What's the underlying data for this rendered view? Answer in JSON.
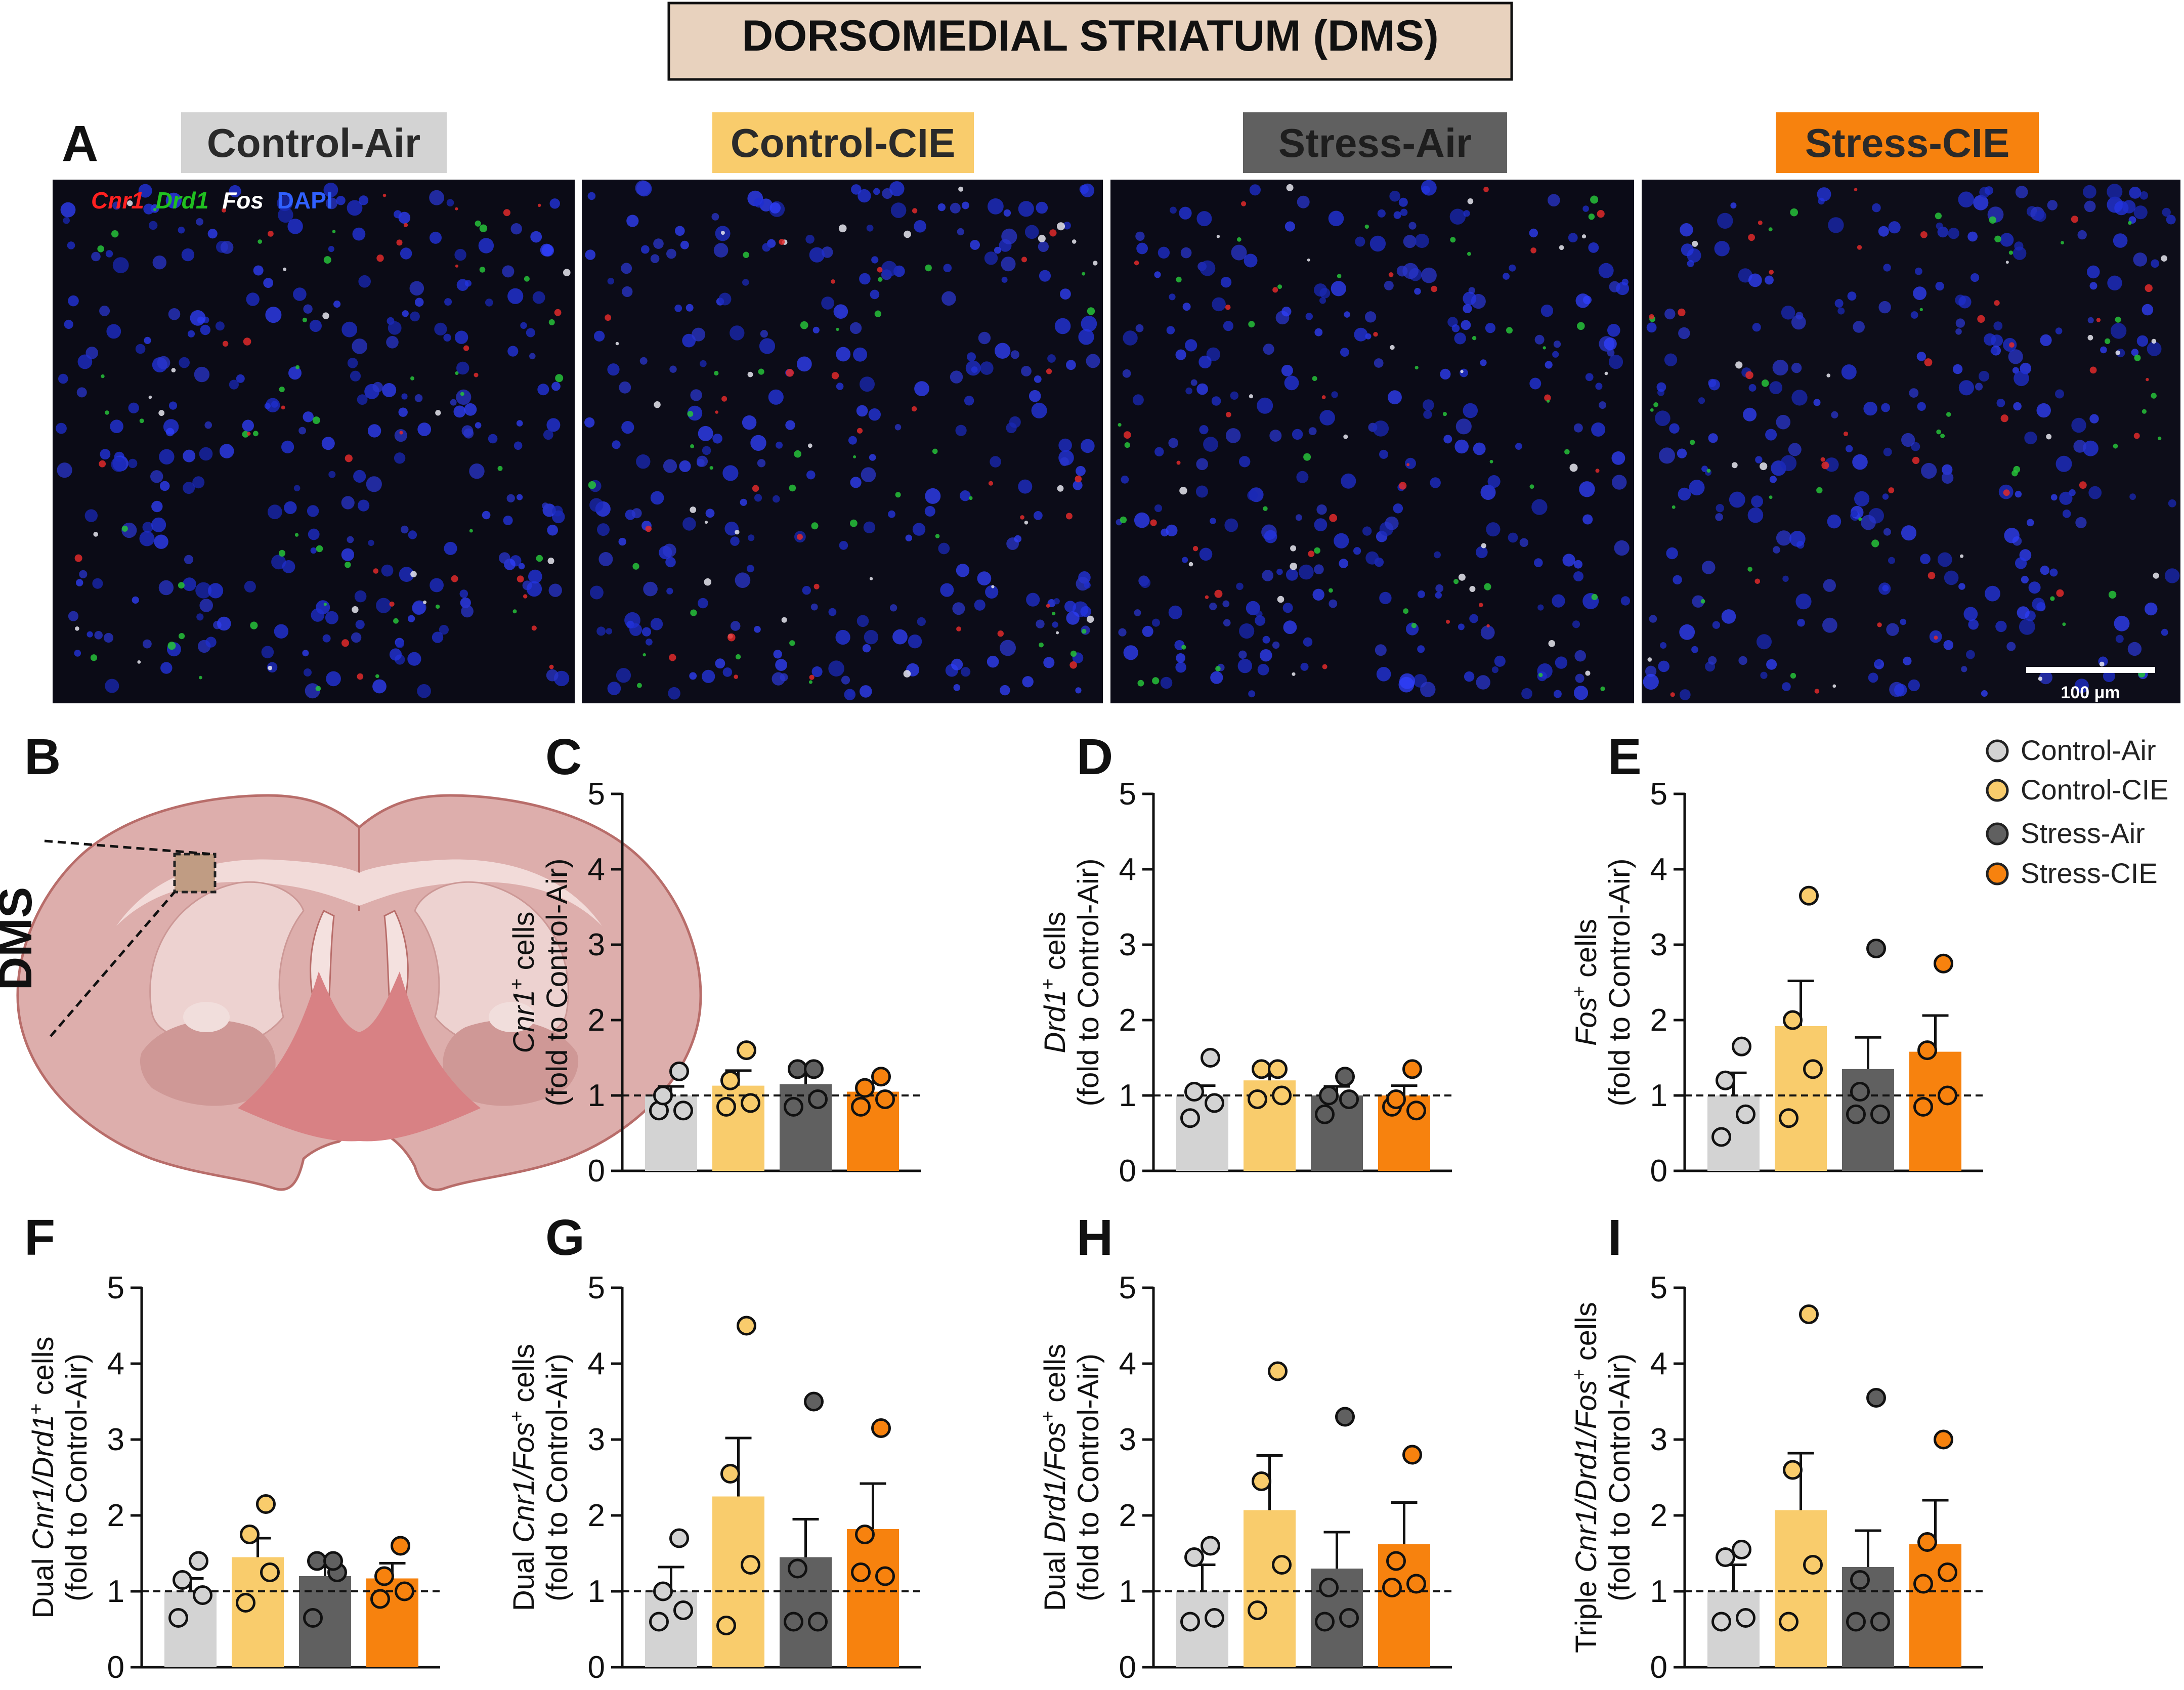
{
  "figure_title": "DORSOMEDIAL STRIATUM (DMS)",
  "colors": {
    "Control-Air": "#d3d3d3",
    "Control-CIE": "#f9cc6c",
    "Stress-Air": "#606060",
    "Stress-CIE": "#f7820e",
    "title_box": "#e8d2be"
  },
  "panel_letters": [
    "A",
    "B",
    "C",
    "D",
    "E",
    "F",
    "G",
    "H",
    "I"
  ],
  "micrographs": {
    "groups": [
      "Control-Air",
      "Control-CIE",
      "Stress-Air",
      "Stress-CIE"
    ],
    "stain_legend": [
      {
        "text": "Cnr1",
        "color": "#ff2020",
        "italic": true
      },
      {
        "text": "Drd1",
        "color": "#20c020",
        "italic": true
      },
      {
        "text": "Fos",
        "color": "#ffffff",
        "italic": true
      },
      {
        "text": "DAPI",
        "color": "#3060ff",
        "italic": false
      }
    ],
    "scale_bar_label": "100 μm"
  },
  "brain_region_label": "DMS",
  "legend": [
    "Control-Air",
    "Control-CIE",
    "Stress-Air",
    "Stress-CIE"
  ],
  "chart_data": [
    {
      "panel": "C",
      "type": "bar",
      "categories": [
        "Control-Air",
        "Control-CIE",
        "Stress-Air",
        "Stress-CIE"
      ],
      "means": [
        1.0,
        1.13,
        1.15,
        1.05
      ],
      "sem": [
        0.12,
        0.2,
        0.16,
        0.12
      ],
      "points": [
        [
          0.8,
          0.8,
          1.0,
          1.32
        ],
        [
          0.85,
          0.9,
          1.2,
          1.6
        ],
        [
          0.85,
          0.95,
          1.35,
          1.35
        ],
        [
          0.85,
          0.95,
          1.1,
          1.25
        ]
      ],
      "ylabel_lines": [
        [
          {
            "t": "Cnr1",
            "i": true
          },
          {
            "t": "+",
            "sup": true
          },
          {
            "t": " cells"
          }
        ],
        [
          {
            "t": "(fold to Control-Air)"
          }
        ]
      ],
      "ylim": [
        0,
        5
      ],
      "ticks": [
        "0",
        "1",
        "2",
        "3",
        "4",
        "5"
      ],
      "reference_line": 1
    },
    {
      "panel": "D",
      "type": "bar",
      "categories": [
        "Control-Air",
        "Control-CIE",
        "Stress-Air",
        "Stress-CIE"
      ],
      "means": [
        1.0,
        1.2,
        1.0,
        1.0
      ],
      "sem": [
        0.13,
        0.18,
        0.12,
        0.13
      ],
      "points": [
        [
          0.7,
          0.9,
          1.05,
          1.5
        ],
        [
          0.95,
          1.0,
          1.35,
          1.35
        ],
        [
          0.75,
          0.95,
          1.0,
          1.25
        ],
        [
          0.85,
          0.8,
          0.95,
          1.35
        ]
      ],
      "ylabel_lines": [
        [
          {
            "t": "Drd1",
            "i": true
          },
          {
            "t": "+",
            "sup": true
          },
          {
            "t": " cells"
          }
        ],
        [
          {
            "t": "(fold to Control-Air)"
          }
        ]
      ],
      "ylim": [
        0,
        5
      ],
      "ticks": [
        "0",
        "1",
        "2",
        "3",
        "4",
        "5"
      ],
      "reference_line": 1
    },
    {
      "panel": "E",
      "type": "bar",
      "categories": [
        "Control-Air",
        "Control-CIE",
        "Stress-Air",
        "Stress-CIE"
      ],
      "means": [
        1.0,
        1.92,
        1.35,
        1.58
      ],
      "sem": [
        0.3,
        0.6,
        0.42,
        0.48
      ],
      "points": [
        [
          0.45,
          0.75,
          1.2,
          1.65
        ],
        [
          0.7,
          1.35,
          2.0,
          3.65
        ],
        [
          0.75,
          0.75,
          1.05,
          2.95
        ],
        [
          0.85,
          1.0,
          1.6,
          2.75
        ]
      ],
      "ylabel_lines": [
        [
          {
            "t": "Fos",
            "i": true
          },
          {
            "t": "+",
            "sup": true
          },
          {
            "t": " cells"
          }
        ],
        [
          {
            "t": "(fold to Control-Air)"
          }
        ]
      ],
      "ylim": [
        0,
        5
      ],
      "ticks": [
        "0",
        "1",
        "2",
        "3",
        "4",
        "5"
      ],
      "reference_line": 1
    },
    {
      "panel": "F",
      "type": "bar",
      "categories": [
        "Control-Air",
        "Control-CIE",
        "Stress-Air",
        "Stress-CIE"
      ],
      "means": [
        1.0,
        1.45,
        1.2,
        1.17
      ],
      "sem": [
        0.17,
        0.25,
        0.2,
        0.2
      ],
      "points": [
        [
          0.65,
          0.95,
          1.15,
          1.4
        ],
        [
          0.85,
          1.25,
          1.75,
          2.15
        ],
        [
          0.65,
          1.25,
          1.4,
          1.4
        ],
        [
          0.9,
          1.0,
          1.2,
          1.6
        ]
      ],
      "ylabel_lines": [
        [
          {
            "t": "Dual "
          },
          {
            "t": "Cnr1/Drd1",
            "i": true
          },
          {
            "t": "+",
            "sup": true
          },
          {
            "t": " cells"
          }
        ],
        [
          {
            "t": "(fold to Control-Air)"
          }
        ]
      ],
      "ylim": [
        0,
        5
      ],
      "ticks": [
        "0",
        "1",
        "2",
        "3",
        "4",
        "5"
      ],
      "reference_line": 1
    },
    {
      "panel": "G",
      "type": "bar",
      "categories": [
        "Control-Air",
        "Control-CIE",
        "Stress-Air",
        "Stress-CIE"
      ],
      "means": [
        1.0,
        2.25,
        1.45,
        1.82
      ],
      "sem": [
        0.32,
        0.77,
        0.5,
        0.6
      ],
      "points": [
        [
          0.6,
          0.75,
          1.0,
          1.7
        ],
        [
          0.55,
          1.35,
          2.55,
          4.5
        ],
        [
          0.6,
          0.6,
          1.3,
          3.5
        ],
        [
          1.25,
          1.2,
          1.75,
          3.15
        ]
      ],
      "ylabel_lines": [
        [
          {
            "t": "Dual "
          },
          {
            "t": "Cnr1/Fos",
            "i": true
          },
          {
            "t": "+",
            "sup": true
          },
          {
            "t": " cells"
          }
        ],
        [
          {
            "t": "(fold to Control-Air)"
          }
        ]
      ],
      "ylim": [
        0,
        5
      ],
      "ticks": [
        "0",
        "1",
        "2",
        "3",
        "4",
        "5"
      ],
      "reference_line": 1
    },
    {
      "panel": "H",
      "type": "bar",
      "categories": [
        "Control-Air",
        "Control-CIE",
        "Stress-Air",
        "Stress-CIE"
      ],
      "means": [
        1.0,
        2.07,
        1.3,
        1.62
      ],
      "sem": [
        0.35,
        0.72,
        0.48,
        0.55
      ],
      "points": [
        [
          0.6,
          0.65,
          1.45,
          1.6
        ],
        [
          0.75,
          1.35,
          2.45,
          3.9
        ],
        [
          0.6,
          0.65,
          1.05,
          3.3
        ],
        [
          1.05,
          1.1,
          1.4,
          2.8
        ]
      ],
      "ylabel_lines": [
        [
          {
            "t": "Dual "
          },
          {
            "t": "Drd1/Fos",
            "i": true
          },
          {
            "t": "+",
            "sup": true
          },
          {
            "t": " cells"
          }
        ],
        [
          {
            "t": "(fold to Control-Air)"
          }
        ]
      ],
      "ylim": [
        0,
        5
      ],
      "ticks": [
        "0",
        "1",
        "2",
        "3",
        "4",
        "5"
      ],
      "reference_line": 1
    },
    {
      "panel": "I",
      "type": "bar",
      "categories": [
        "Control-Air",
        "Control-CIE",
        "Stress-Air",
        "Stress-CIE"
      ],
      "means": [
        1.0,
        2.07,
        1.32,
        1.62
      ],
      "sem": [
        0.35,
        0.75,
        0.48,
        0.58
      ],
      "points": [
        [
          0.6,
          0.65,
          1.45,
          1.55
        ],
        [
          0.6,
          1.35,
          2.6,
          4.65
        ],
        [
          0.6,
          0.6,
          1.15,
          3.55
        ],
        [
          1.1,
          1.25,
          1.65,
          3.0
        ]
      ],
      "ylabel_lines": [
        [
          {
            "t": "Triple "
          },
          {
            "t": "Cnr1/Drd1/Fos",
            "i": true
          },
          {
            "t": "+",
            "sup": true
          },
          {
            "t": " cells"
          }
        ],
        [
          {
            "t": "(fold to Control-Air)"
          }
        ]
      ],
      "ylim": [
        0,
        5
      ],
      "ticks": [
        "0",
        "1",
        "2",
        "3",
        "4",
        "5"
      ],
      "reference_line": 1
    }
  ]
}
